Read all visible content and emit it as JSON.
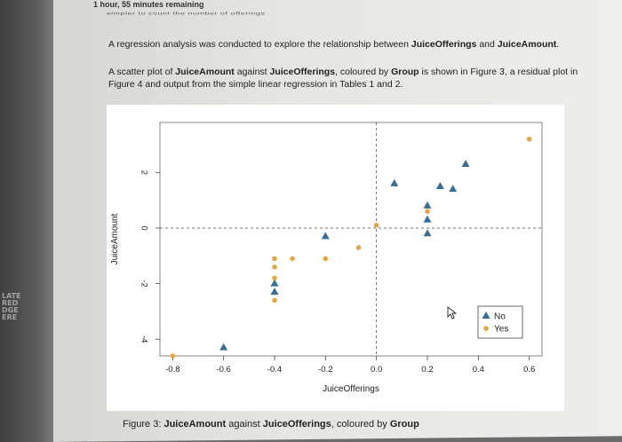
{
  "header": {
    "timer": "1 hour, 55 minutes remaining",
    "cut_text": "simpler to count the number of offerings"
  },
  "intro": {
    "p1_pre": "A regression analysis was conducted to explore the relationship between ",
    "p1_var1": "JuiceOfferings",
    "p1_mid": " and ",
    "p1_var2": "JuiceAmount",
    "p1_end": ".",
    "p2_a": "A scatter plot of ",
    "p2_var1": "JuiceAmount",
    "p2_b": " against ",
    "p2_var2": "JuiceOfferings",
    "p2_c": ", coloured by ",
    "p2_var3": "Group",
    "p2_d": " is shown in Figure 3, a residual plot in Figure 4 and output from the simple linear regression in Tables 1 and 2."
  },
  "left_edge_text": "LATE\nRED\nDGE\nERE",
  "chart_data": {
    "type": "scatter",
    "xlabel": "JuiceOfferings",
    "ylabel": "JuiceAmount",
    "xlim": [
      -0.85,
      0.65
    ],
    "ylim": [
      -4.6,
      3.8
    ],
    "x_ticks": [
      -0.8,
      -0.6,
      -0.4,
      -0.2,
      0.0,
      0.2,
      0.4,
      0.6
    ],
    "x_tick_labels": [
      "-0.8",
      "-0.6",
      "-0.4",
      "-0.2",
      "0.0",
      "0.2",
      "0.4",
      "0.6"
    ],
    "y_ticks": [
      -4,
      -2,
      0,
      2
    ],
    "y_tick_labels": [
      "-4",
      "-2",
      "0",
      "2"
    ],
    "reference_lines": {
      "x": 0,
      "y": 0
    },
    "legend_position": "bottom-right",
    "series": [
      {
        "name": "No",
        "marker": "triangle",
        "color": "#3b6e96",
        "points": [
          [
            -0.6,
            -4.3
          ],
          [
            -0.4,
            -2.0
          ],
          [
            -0.4,
            -2.3
          ],
          [
            -0.2,
            -0.3
          ],
          [
            0.07,
            1.6
          ],
          [
            0.2,
            0.8
          ],
          [
            0.2,
            0.3
          ],
          [
            0.2,
            -0.2
          ],
          [
            0.25,
            1.5
          ],
          [
            0.3,
            1.4
          ],
          [
            0.35,
            2.3
          ]
        ]
      },
      {
        "name": "Yes",
        "marker": "circle",
        "color": "#e4a640",
        "points": [
          [
            -0.8,
            -4.6
          ],
          [
            -0.4,
            -1.1
          ],
          [
            -0.4,
            -1.4
          ],
          [
            -0.4,
            -1.8
          ],
          [
            -0.4,
            -2.6
          ],
          [
            -0.33,
            -1.1
          ],
          [
            -0.2,
            -1.1
          ],
          [
            -0.07,
            -0.7
          ],
          [
            0.0,
            0.1
          ],
          [
            0.2,
            0.6
          ],
          [
            0.6,
            3.2
          ]
        ]
      }
    ]
  },
  "caption": {
    "prefix": "Figure 3: ",
    "var1": "JuiceAmount",
    "mid": " against ",
    "var2": "JuiceOfferings",
    "end": ", coloured by ",
    "var3": "Group"
  }
}
